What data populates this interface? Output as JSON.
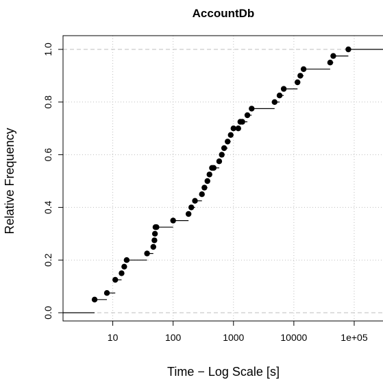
{
  "chart_data": {
    "type": "step",
    "title": "AccountDb",
    "xlabel": "Time − Log Scale [s]",
    "ylabel": "Relative Frequency",
    "x_scale": "log",
    "x_ticks": [
      {
        "value": 10,
        "label": "10"
      },
      {
        "value": 100,
        "label": "100"
      },
      {
        "value": 1000,
        "label": "1000"
      },
      {
        "value": 10000,
        "label": "10000"
      },
      {
        "value": 100000,
        "label": "1e+05"
      }
    ],
    "y_ticks": [
      {
        "value": 0.0,
        "label": "0.0"
      },
      {
        "value": 0.2,
        "label": "0.2"
      },
      {
        "value": 0.4,
        "label": "0.4"
      },
      {
        "value": 0.6,
        "label": "0.6"
      },
      {
        "value": 0.8,
        "label": "0.8"
      },
      {
        "value": 1.0,
        "label": "1.0"
      }
    ],
    "xlim": [
      1.5,
      300000
    ],
    "ylim": [
      0,
      1
    ],
    "grid": true,
    "series": [
      {
        "x": [
          5,
          8,
          11,
          14,
          15.5,
          17,
          37,
          47,
          49,
          50,
          51,
          53,
          100,
          180,
          200,
          230,
          300,
          330,
          370,
          400,
          440,
          470,
          580,
          640,
          700,
          800,
          900,
          1000,
          1200,
          1300,
          1400,
          1700,
          2000,
          4800,
          5800,
          6800,
          11500,
          12800,
          14500,
          40000,
          45000,
          80000
        ],
        "y": [
          0.05,
          0.075,
          0.125,
          0.15,
          0.175,
          0.2,
          0.225,
          0.25,
          0.275,
          0.3,
          0.325,
          0.325,
          0.35,
          0.375,
          0.4,
          0.425,
          0.45,
          0.475,
          0.5,
          0.525,
          0.55,
          0.55,
          0.575,
          0.6,
          0.625,
          0.65,
          0.675,
          0.7,
          0.7,
          0.725,
          0.725,
          0.75,
          0.775,
          0.8,
          0.825,
          0.85,
          0.875,
          0.9,
          0.925,
          0.95,
          0.975,
          1.0
        ]
      }
    ]
  }
}
